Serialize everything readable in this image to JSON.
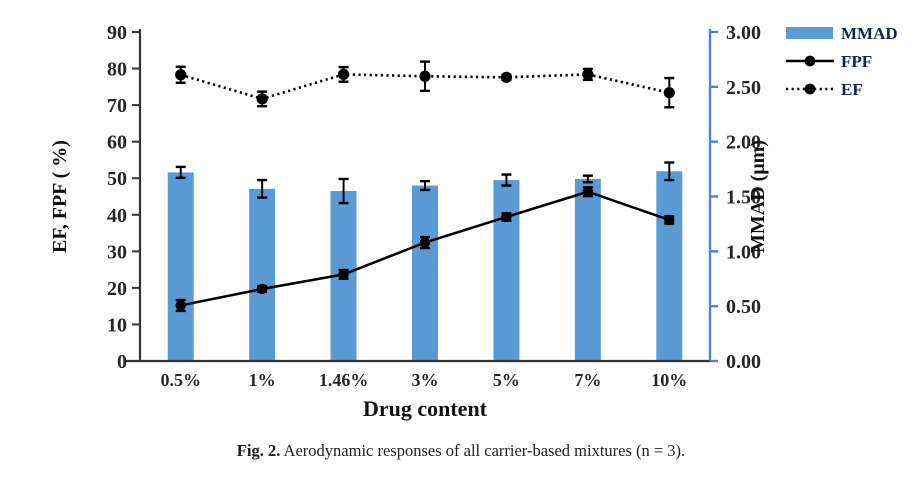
{
  "figure": {
    "caption_label": "Fig. 2.",
    "caption_text": " Aerodynamic responses of all carrier-based mixtures (n = 3)."
  },
  "colors": {
    "bar_blue": "#5b9bd5",
    "right_axis_blue": "#4a86c8",
    "axis_dark": "#333333",
    "tick_text": "#262626",
    "legend_text": "#12264f",
    "line_black": "#000000"
  },
  "chart_data": {
    "type": "bar+line composite, dual y-axis",
    "categories": [
      "0.5%",
      "1%",
      "1.46%",
      "3%",
      "5%",
      "7%",
      "10%"
    ],
    "x_axis": {
      "label": "Drug content"
    },
    "left_axis": {
      "label": "EF, FPF ( %)",
      "min": 0,
      "max": 90,
      "ticks": [
        "0",
        "10",
        "20",
        "30",
        "40",
        "50",
        "60",
        "70",
        "80",
        "90"
      ]
    },
    "right_axis": {
      "label": "MMAD (μm)",
      "min": 0,
      "max": 3,
      "ticks": [
        "0.00",
        "0.50",
        "1.00",
        "1.50",
        "2.00",
        "2.50",
        "3.00"
      ]
    },
    "series": [
      {
        "name": "MMAD",
        "type": "bar",
        "axis": "right",
        "color": "#5b9bd5",
        "values": [
          1.72,
          1.57,
          1.55,
          1.6,
          1.65,
          1.66,
          1.73
        ],
        "errors": [
          0.05,
          0.08,
          0.11,
          0.04,
          0.05,
          0.03,
          0.08
        ]
      },
      {
        "name": "FPF",
        "type": "line",
        "line_style": "solid",
        "axis": "left",
        "color": "#000000",
        "values": [
          15.2,
          19.7,
          23.7,
          32.4,
          39.4,
          46.3,
          38.6
        ],
        "errors": [
          1.5,
          0.8,
          1.2,
          1.5,
          1.0,
          1.2,
          1.0
        ]
      },
      {
        "name": "EF",
        "type": "line",
        "line_style": "dotted",
        "axis": "left",
        "color": "#000000",
        "values": [
          78.3,
          71.7,
          78.4,
          77.9,
          77.6,
          78.4,
          73.4
        ],
        "errors": [
          2.2,
          2.0,
          2.0,
          4.0,
          0.7,
          1.5,
          4.0
        ]
      }
    ],
    "legend": {
      "position": "top-right",
      "items": [
        "MMAD",
        "FPF",
        "EF"
      ]
    }
  }
}
